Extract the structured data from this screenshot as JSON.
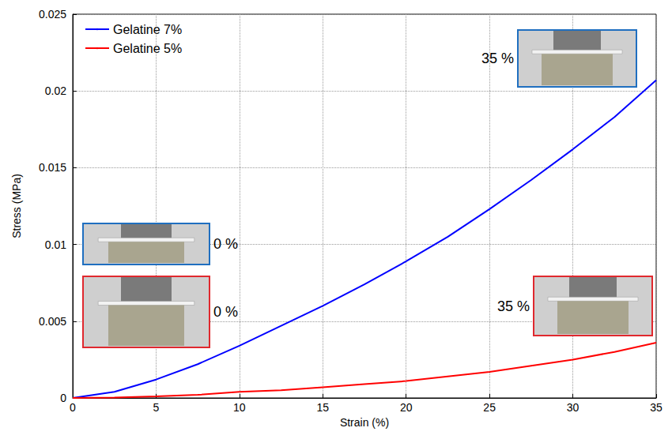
{
  "chart_data": {
    "type": "line",
    "xlabel": "Strain (%)",
    "ylabel": "Stress (MPa)",
    "x": [
      0,
      2.5,
      5,
      7.5,
      10,
      12.5,
      15,
      17.5,
      20,
      22.5,
      25,
      27.5,
      30,
      32.5,
      35
    ],
    "series": [
      {
        "name": "Gelatine 7%",
        "color": "#0000ff",
        "values": [
          0,
          0.0004,
          0.0012,
          0.0022,
          0.0034,
          0.0047,
          0.006,
          0.0074,
          0.0089,
          0.0105,
          0.0123,
          0.0142,
          0.0162,
          0.0183,
          0.0207
        ]
      },
      {
        "name": "Gelatine 5%",
        "color": "#ff0000",
        "values": [
          0,
          3e-05,
          0.0001,
          0.0002,
          0.0004,
          0.0005,
          0.0007,
          0.0009,
          0.0011,
          0.0014,
          0.0017,
          0.0021,
          0.0025,
          0.003,
          0.0036
        ]
      }
    ],
    "xlim": [
      0,
      35
    ],
    "xticks": [
      0,
      5,
      10,
      15,
      20,
      25,
      30,
      35
    ],
    "ylim": [
      0,
      0.025
    ],
    "yticks": [
      0,
      0.005,
      0.01,
      0.015,
      0.02,
      0.025
    ],
    "grid": true,
    "legend": "upper left",
    "annotations": [
      {
        "text": "0 %",
        "series": "Gelatine 7%",
        "x": 0
      },
      {
        "text": "35 %",
        "series": "Gelatine 7%",
        "x": 35
      },
      {
        "text": "0 %",
        "series": "Gelatine 5%",
        "x": 0
      },
      {
        "text": "35 %",
        "series": "Gelatine 5%",
        "x": 35
      }
    ]
  }
}
